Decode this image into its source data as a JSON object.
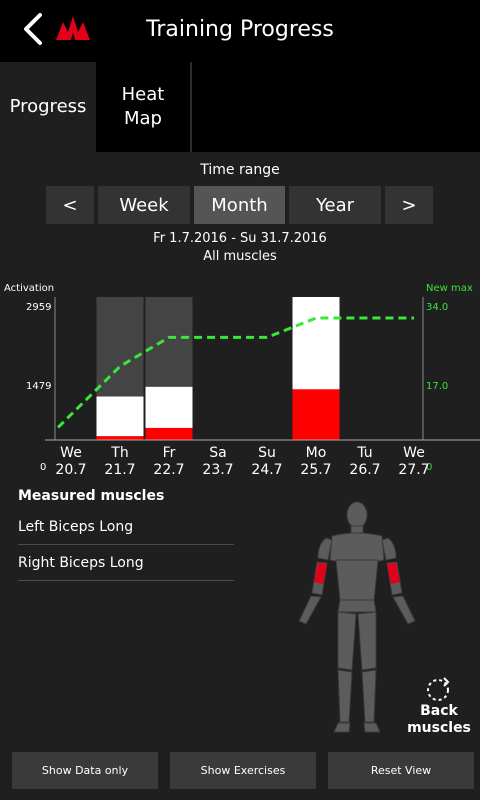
{
  "header": {
    "title": "Training Progress"
  },
  "tabs": {
    "progress": "Progress",
    "heatmap": "Heat Map"
  },
  "time_range": {
    "label": "Time range",
    "prev": "<",
    "next": ">",
    "options": [
      "Week",
      "Month",
      "Year"
    ],
    "selected": "Month"
  },
  "period": {
    "dates": "Fr 1.7.2016 - Su 31.7.2016",
    "muscles": "All muscles"
  },
  "chart_data": {
    "type": "bar",
    "left_axis_title": "Activation",
    "right_axis_title": "New max",
    "left_ticks": [
      "2959",
      "1479",
      "0"
    ],
    "right_ticks": [
      "34.0",
      "17.0",
      "0"
    ],
    "days": [
      {
        "day": "We",
        "date": "20.7"
      },
      {
        "day": "Th",
        "date": "21.7"
      },
      {
        "day": "Fr",
        "date": "22.7"
      },
      {
        "day": "Sa",
        "date": "23.7"
      },
      {
        "day": "Su",
        "date": "24.7"
      },
      {
        "day": "Mo",
        "date": "25.7"
      },
      {
        "day": "Tu",
        "date": "26.7"
      },
      {
        "day": "We",
        "date": "27.7"
      }
    ],
    "activation_max": 2959,
    "activation_total": [
      0,
      900,
      1100,
      0,
      0,
      2959,
      0,
      0
    ],
    "activation_red": [
      0,
      80,
      250,
      0,
      0,
      1050,
      0,
      0
    ],
    "max_value_right": 34.0,
    "new_max_line": [
      3.0,
      17.5,
      24.4,
      24.4,
      24.4,
      29.0,
      29.0,
      29.0
    ],
    "selected_range_days": [
      1,
      2
    ],
    "colors": {
      "bar_white": "#ffffff",
      "bar_red": "#ff0000",
      "line": "#39e639",
      "highlight": "#444444"
    }
  },
  "measured": {
    "title": "Measured muscles",
    "items": [
      "Left Biceps Long",
      "Right Biceps Long"
    ]
  },
  "back_muscles": "Back muscles",
  "bottom_buttons": {
    "show_data_only": "Show Data only",
    "show_exercises": "Show Exercises",
    "reset_view": "Reset View"
  }
}
